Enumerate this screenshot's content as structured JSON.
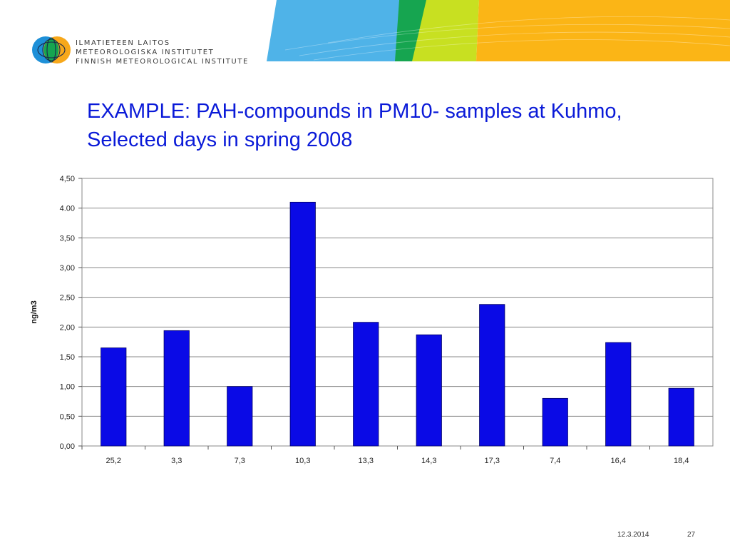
{
  "organization": {
    "lines": [
      "ILMATIETEEN LAITOS",
      "METEOROLOGISKA INSTITUTET",
      "FINNISH METEOROLOGICAL INSTITUTE"
    ]
  },
  "slide": {
    "title_lines": [
      "EXAMPLE: PAH-compounds in PM10- samples at Kuhmo,",
      "Selected days in spring 2008"
    ],
    "date": "12.3.2014",
    "page_number": "27"
  },
  "colors": {
    "title": "#0a1ad8",
    "bar": "#0a0ae6",
    "banner_blue": "#4fb3e8",
    "banner_green": "#16a550",
    "banner_lime": "#c8e021",
    "banner_orange": "#fbb516"
  },
  "chart_data": {
    "type": "bar",
    "categories": [
      "25,2",
      "3,3",
      "7,3",
      "10,3",
      "13,3",
      "14,3",
      "17,3",
      "7,4",
      "16,4",
      "18,4"
    ],
    "values": [
      1.65,
      1.94,
      1.0,
      4.1,
      2.08,
      1.87,
      2.38,
      0.8,
      1.74,
      0.97
    ],
    "title": "",
    "xlabel": "",
    "ylabel": "ng/m3",
    "ylim": [
      0,
      4.5
    ],
    "yticks": [
      "0,00",
      "0,50",
      "1,00",
      "1,50",
      "2,00",
      "2,50",
      "3,00",
      "3,50",
      "4.00",
      "4,50"
    ],
    "grid": true,
    "legend": "none"
  }
}
